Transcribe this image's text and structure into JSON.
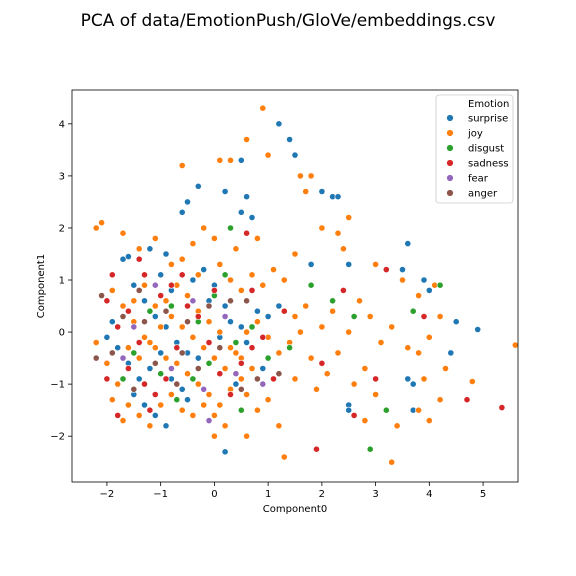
{
  "chart_data": {
    "type": "scatter",
    "title": "PCA of data/EmotionPush/GloVe/embeddings.csv",
    "xlabel": "Component0",
    "ylabel": "Component1",
    "xlim": [
      -2.65,
      5.65
    ],
    "ylim": [
      -2.88,
      4.65
    ],
    "xticks": [
      -2,
      -1,
      0,
      1,
      2,
      3,
      4,
      5
    ],
    "yticks": [
      -2,
      -1,
      0,
      1,
      2,
      3,
      4
    ],
    "grid": false,
    "legend": {
      "title": "Emotion",
      "placement": "top-right"
    },
    "series": [
      {
        "name": "surprise",
        "color": "#1f77b4",
        "points": [
          [
            -1.2,
            1.6
          ],
          [
            -0.9,
            1.5
          ],
          [
            -0.6,
            2.3
          ],
          [
            -0.5,
            2.5
          ],
          [
            -0.3,
            2.8
          ],
          [
            0.2,
            2.7
          ],
          [
            0.5,
            3.3
          ],
          [
            0.6,
            2.6
          ],
          [
            1.2,
            4.0
          ],
          [
            1.4,
            3.7
          ],
          [
            1.5,
            3.4
          ],
          [
            0.5,
            2.3
          ],
          [
            0.7,
            2.2
          ],
          [
            2.0,
            2.7
          ],
          [
            2.2,
            2.6
          ],
          [
            2.3,
            2.6
          ],
          [
            1.8,
            1.3
          ],
          [
            2.5,
            1.3
          ],
          [
            3.2,
            1.2
          ],
          [
            3.5,
            1.2
          ],
          [
            3.6,
            1.7
          ],
          [
            3.9,
            1.0
          ],
          [
            4.0,
            0.8
          ],
          [
            4.5,
            0.2
          ],
          [
            4.9,
            0.05
          ],
          [
            4.4,
            -0.4
          ],
          [
            3.6,
            -0.9
          ],
          [
            3.7,
            -1.0
          ],
          [
            3.2,
            -1.5
          ],
          [
            3.7,
            -1.5
          ],
          [
            2.5,
            -1.4
          ],
          [
            2.5,
            -1.5
          ],
          [
            0.2,
            -2.3
          ],
          [
            -0.9,
            -1.8
          ],
          [
            -1.6,
            1.45
          ],
          [
            -1.7,
            1.4
          ],
          [
            -1.5,
            0.9
          ],
          [
            -1.3,
            0.6
          ],
          [
            -1.1,
            0.3
          ],
          [
            -0.9,
            0.1
          ],
          [
            -0.7,
            -0.2
          ],
          [
            -0.5,
            -0.4
          ],
          [
            -0.3,
            -0.5
          ],
          [
            -1.9,
            0.2
          ],
          [
            -2.0,
            -0.1
          ],
          [
            -1.8,
            -0.3
          ],
          [
            -1.6,
            -0.6
          ],
          [
            -1.4,
            -0.9
          ],
          [
            -1.2,
            -0.7
          ],
          [
            -1.0,
            -0.4
          ],
          [
            -0.8,
            -0.9
          ],
          [
            -0.6,
            -1.1
          ],
          [
            0.1,
            -0.1
          ],
          [
            0.3,
            0.2
          ],
          [
            0.5,
            0.1
          ],
          [
            0.6,
            -0.2
          ],
          [
            -0.4,
            1.0
          ],
          [
            -0.2,
            1.2
          ],
          [
            0.0,
            0.9
          ],
          [
            0.2,
            0.5
          ],
          [
            -1.0,
            1.1
          ],
          [
            -0.8,
            0.8
          ],
          [
            -0.1,
            0.6
          ],
          [
            0.8,
            0.4
          ],
          [
            1.0,
            0.3
          ],
          [
            1.2,
            0.5
          ],
          [
            -1.5,
            -1.2
          ],
          [
            -1.3,
            -1.4
          ],
          [
            -1.1,
            -1.6
          ],
          [
            -0.5,
            -1.3
          ],
          [
            0.4,
            -1.0
          ],
          [
            0.9,
            -0.7
          ]
        ]
      },
      {
        "name": "joy",
        "color": "#ff7f0e",
        "points": [
          [
            0.9,
            4.3
          ],
          [
            1.0,
            3.4
          ],
          [
            0.1,
            3.3
          ],
          [
            0.3,
            3.3
          ],
          [
            0.6,
            3.7
          ],
          [
            -0.6,
            3.2
          ],
          [
            1.6,
            3.0
          ],
          [
            1.8,
            3.0
          ],
          [
            2.0,
            2.0
          ],
          [
            2.5,
            2.2
          ],
          [
            1.7,
            2.7
          ],
          [
            2.3,
            1.9
          ],
          [
            3.0,
            1.3
          ],
          [
            2.4,
            1.6
          ],
          [
            3.5,
            1.0
          ],
          [
            3.8,
            0.7
          ],
          [
            4.1,
            0.9
          ],
          [
            5.6,
            -0.25
          ],
          [
            4.8,
            -0.95
          ],
          [
            4.3,
            -0.7
          ],
          [
            4.0,
            -0.1
          ],
          [
            4.2,
            0.3
          ],
          [
            3.8,
            -0.4
          ],
          [
            3.3,
            -2.5
          ],
          [
            3.4,
            -1.8
          ],
          [
            3.0,
            -1.2
          ],
          [
            2.8,
            -0.7
          ],
          [
            2.6,
            -1.0
          ],
          [
            2.3,
            -0.4
          ],
          [
            1.8,
            -0.5
          ],
          [
            1.5,
            -0.9
          ],
          [
            1.3,
            -2.4
          ],
          [
            1.2,
            -1.8
          ],
          [
            1.5,
            0.3
          ],
          [
            1.7,
            0.5
          ],
          [
            2.0,
            0.1
          ],
          [
            2.2,
            0.4
          ],
          [
            2.5,
            0.0
          ],
          [
            2.7,
            0.6
          ],
          [
            2.9,
            0.3
          ],
          [
            3.1,
            -0.2
          ],
          [
            3.3,
            0.1
          ],
          [
            1.1,
            1.2
          ],
          [
            1.3,
            1.0
          ],
          [
            1.5,
            1.5
          ],
          [
            0.8,
            1.8
          ],
          [
            0.4,
            1.6
          ],
          [
            0.0,
            1.8
          ],
          [
            -0.2,
            2.0
          ],
          [
            -0.4,
            1.7
          ],
          [
            -0.6,
            1.4
          ],
          [
            -0.8,
            1.3
          ],
          [
            -1.1,
            1.8
          ],
          [
            -1.4,
            1.6
          ],
          [
            -1.7,
            1.9
          ],
          [
            -2.1,
            2.1
          ],
          [
            -2.2,
            2.0
          ],
          [
            -1.9,
            0.8
          ],
          [
            -1.7,
            0.5
          ],
          [
            -1.5,
            0.2
          ],
          [
            -1.3,
            -0.1
          ],
          [
            -1.1,
            -0.3
          ],
          [
            -0.9,
            -0.5
          ],
          [
            -0.7,
            -0.6
          ],
          [
            -0.5,
            -0.8
          ],
          [
            -0.3,
            -1.0
          ],
          [
            -0.1,
            -1.2
          ],
          [
            0.1,
            -1.4
          ],
          [
            0.3,
            -1.1
          ],
          [
            0.5,
            -0.9
          ],
          [
            0.7,
            -0.7
          ],
          [
            -2.2,
            -0.2
          ],
          [
            -2.0,
            -0.6
          ],
          [
            -1.8,
            -1.0
          ],
          [
            -1.6,
            -1.4
          ],
          [
            -1.4,
            -1.6
          ],
          [
            -1.2,
            -1.8
          ],
          [
            -1.0,
            -1.4
          ],
          [
            -0.8,
            -1.2
          ],
          [
            -0.6,
            -1.5
          ],
          [
            -0.4,
            -1.6
          ],
          [
            -0.2,
            -1.4
          ],
          [
            0.0,
            -1.6
          ],
          [
            0.2,
            -1.8
          ],
          [
            -0.9,
            0.6
          ],
          [
            -0.7,
            0.9
          ],
          [
            -0.5,
            0.7
          ],
          [
            -0.3,
            0.4
          ],
          [
            -0.1,
            0.2
          ],
          [
            0.1,
            0.0
          ],
          [
            0.3,
            -0.3
          ],
          [
            0.5,
            -0.5
          ],
          [
            -1.5,
            0.6
          ],
          [
            -1.3,
            0.9
          ],
          [
            -1.1,
            0.5
          ],
          [
            -1.6,
            -0.3
          ],
          [
            -1.4,
            -0.5
          ],
          [
            -1.2,
            -0.2
          ],
          [
            -1.0,
            0.1
          ],
          [
            -0.8,
            0.3
          ],
          [
            -0.6,
            0.1
          ],
          [
            -0.4,
            -0.1
          ],
          [
            -0.2,
            -0.3
          ],
          [
            0.0,
            -0.5
          ],
          [
            0.2,
            -0.7
          ],
          [
            0.4,
            -0.4
          ],
          [
            0.6,
            0.0
          ],
          [
            0.8,
            0.2
          ],
          [
            1.0,
            -0.1
          ],
          [
            1.2,
            -0.4
          ],
          [
            1.4,
            -0.2
          ],
          [
            1.6,
            0.0
          ],
          [
            1.0,
            -1.3
          ],
          [
            0.8,
            -1.5
          ],
          [
            0.6,
            -1.2
          ],
          [
            -0.3,
            1.1
          ],
          [
            0.1,
            1.3
          ],
          [
            0.3,
            1.0
          ],
          [
            0.5,
            0.8
          ],
          [
            0.7,
            1.1
          ],
          [
            0.9,
            0.9
          ],
          [
            3.6,
            -0.3
          ],
          [
            3.9,
            -0.9
          ],
          [
            4.2,
            -1.3
          ],
          [
            2.1,
            -0.8
          ],
          [
            1.9,
            -1.1
          ],
          [
            2.8,
            -1.7
          ],
          [
            3.8,
            -1.5
          ],
          [
            4.0,
            -1.7
          ],
          [
            -1.9,
            -1.3
          ],
          [
            -1.7,
            -1.7
          ],
          [
            0.6,
            -2.0
          ],
          [
            0.0,
            -2.0
          ]
        ]
      },
      {
        "name": "disgust",
        "color": "#2ca02c",
        "points": [
          [
            2.9,
            -2.25
          ],
          [
            3.2,
            -1.5
          ],
          [
            2.2,
            0.6
          ],
          [
            4.2,
            0.9
          ],
          [
            3.7,
            0.4
          ],
          [
            0.3,
            2.0
          ],
          [
            0.5,
            -1.5
          ],
          [
            -1.0,
            -0.8
          ],
          [
            -1.5,
            -0.4
          ],
          [
            -0.4,
            -0.9
          ],
          [
            0.0,
            0.7
          ],
          [
            0.7,
            0.1
          ],
          [
            1.8,
            0.9
          ],
          [
            -1.2,
            0.4
          ],
          [
            -1.7,
            -0.9
          ],
          [
            -0.7,
            -1.3
          ],
          [
            -0.1,
            -0.6
          ],
          [
            0.2,
            1.1
          ],
          [
            -0.8,
            0.5
          ],
          [
            0.4,
            -0.2
          ],
          [
            1.0,
            -0.5
          ],
          [
            1.4,
            -0.3
          ],
          [
            2.6,
            0.3
          ],
          [
            -0.3,
            0.2
          ]
        ]
      },
      {
        "name": "sadness",
        "color": "#d62728",
        "points": [
          [
            5.35,
            -1.45
          ],
          [
            4.7,
            -1.3
          ],
          [
            3.2,
            1.2
          ],
          [
            3.9,
            0.3
          ],
          [
            1.9,
            -2.25
          ],
          [
            2.6,
            -1.6
          ],
          [
            0.6,
            1.9
          ],
          [
            0.7,
            0.8
          ],
          [
            0.0,
            0.8
          ],
          [
            -1.4,
            1.4
          ],
          [
            -1.3,
            1.1
          ],
          [
            -1.9,
            1.1
          ],
          [
            -2.0,
            0.6
          ],
          [
            -1.8,
            0.1
          ],
          [
            -1.6,
            -0.7
          ],
          [
            -1.3,
            -1.0
          ],
          [
            -1.1,
            -1.2
          ],
          [
            -0.9,
            -0.9
          ],
          [
            -0.7,
            -0.3
          ],
          [
            -0.5,
            0.5
          ],
          [
            -0.3,
            0.3
          ],
          [
            -0.1,
            -0.2
          ],
          [
            0.1,
            -0.8
          ],
          [
            0.3,
            -1.2
          ],
          [
            0.5,
            -0.6
          ],
          [
            0.7,
            -0.3
          ],
          [
            0.9,
            -0.1
          ],
          [
            -1.2,
            -1.5
          ],
          [
            -1.4,
            -0.2
          ],
          [
            -0.8,
            0.9
          ],
          [
            -0.6,
            1.1
          ],
          [
            -1.0,
            0.7
          ],
          [
            -1.6,
            0.4
          ],
          [
            1.1,
            -0.9
          ],
          [
            1.3,
            0.4
          ],
          [
            2.0,
            -0.6
          ],
          [
            2.4,
            0.8
          ],
          [
            3.0,
            -0.9
          ],
          [
            -2.0,
            -0.9
          ],
          [
            -1.8,
            -1.6
          ]
        ]
      },
      {
        "name": "fear",
        "color": "#9467bd",
        "points": [
          [
            -0.1,
            -1.7
          ],
          [
            -1.5,
            0.1
          ],
          [
            -0.8,
            -0.7
          ],
          [
            0.2,
            0.3
          ],
          [
            -1.1,
            0.9
          ],
          [
            0.4,
            -0.8
          ],
          [
            -0.4,
            0.6
          ],
          [
            -1.7,
            -0.5
          ],
          [
            0.9,
            -1.0
          ],
          [
            -0.2,
            -1.1
          ]
        ]
      },
      {
        "name": "anger",
        "color": "#8c564b",
        "points": [
          [
            -2.2,
            -0.5
          ],
          [
            -2.1,
            0.7
          ],
          [
            -1.9,
            -0.4
          ],
          [
            -1.7,
            0.3
          ],
          [
            -1.5,
            -1.1
          ],
          [
            -1.3,
            0.2
          ],
          [
            -1.1,
            -0.6
          ],
          [
            -0.9,
            0.4
          ],
          [
            -0.7,
            -1.0
          ],
          [
            -0.5,
            0.2
          ],
          [
            -0.3,
            -0.7
          ],
          [
            -0.1,
            0.5
          ],
          [
            0.1,
            -0.3
          ],
          [
            0.3,
            0.6
          ],
          [
            0.5,
            -1.1
          ],
          [
            0.8,
            -0.9
          ],
          [
            1.2,
            -0.8
          ],
          [
            0.6,
            0.6
          ],
          [
            -1.4,
            0.8
          ],
          [
            -0.6,
            -0.4
          ]
        ]
      }
    ]
  }
}
